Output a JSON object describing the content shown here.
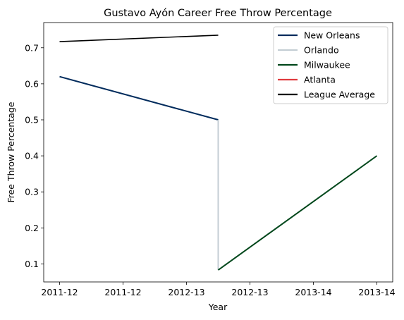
{
  "chart_data": {
    "type": "line",
    "title": "Gustavo Ayón Career Free Throw Percentage",
    "xlabel": "Year",
    "ylabel": "Free Throw Percentage",
    "x_tick_labels": [
      "2011-12",
      "2011-12",
      "2012-13",
      "2012-13",
      "2013-14",
      "2013-14"
    ],
    "x_tick_values": [
      0,
      0.4,
      0.8,
      1.2,
      1.6,
      2.0
    ],
    "xlim": [
      -0.1,
      2.1
    ],
    "ylim": [
      0.05,
      0.77
    ],
    "y_ticks": [
      0.1,
      0.2,
      0.3,
      0.4,
      0.5,
      0.6,
      0.7
    ],
    "grid": false,
    "legend_position": "top-right",
    "series": [
      {
        "name": "New Orleans",
        "color": "#002b5c",
        "width": 2,
        "x": [
          0,
          1
        ],
        "y": [
          0.62,
          0.5
        ]
      },
      {
        "name": "Orlando",
        "color": "#c4ced4",
        "width": 2,
        "x": [
          1,
          1
        ],
        "y": [
          0.5,
          0.083
        ]
      },
      {
        "name": "Milwaukee",
        "color": "#00471b",
        "width": 2,
        "x": [
          1,
          2
        ],
        "y": [
          0.083,
          0.4
        ]
      },
      {
        "name": "Atlanta",
        "color": "#e03a3e",
        "width": 2,
        "x": [],
        "y": []
      },
      {
        "name": "League Average",
        "color": "#000000",
        "width": 1.6,
        "x": [
          0,
          1
        ],
        "y": [
          0.717,
          0.735
        ]
      }
    ]
  }
}
